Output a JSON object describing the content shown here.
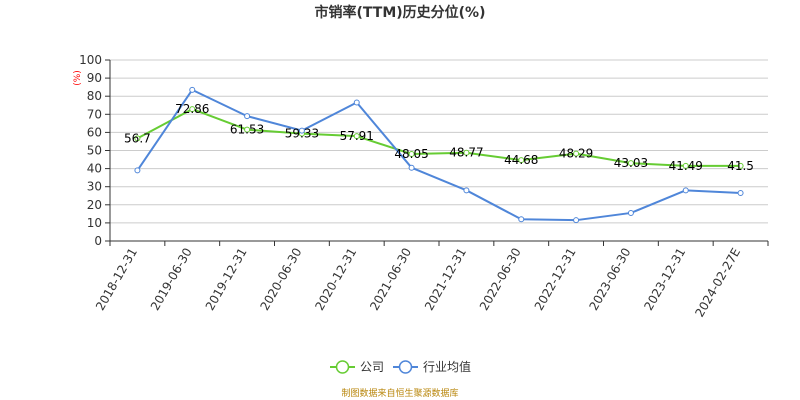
{
  "chart_data": {
    "type": "line",
    "title": "市销率(TTM)历史分位(%)",
    "unit_label": "(%)",
    "categories": [
      "2018-12-31",
      "2019-06-30",
      "2019-12-31",
      "2020-06-30",
      "2020-12-31",
      "2021-06-30",
      "2021-12-31",
      "2022-06-30",
      "2022-12-31",
      "2023-06-30",
      "2023-12-31",
      "2024-02-27E"
    ],
    "ylim": [
      0,
      100
    ],
    "yticks": [
      0,
      10,
      20,
      30,
      40,
      50,
      60,
      70,
      80,
      90,
      100
    ],
    "grid": true,
    "legend_position": "bottom",
    "series": [
      {
        "name": "公司",
        "color": "#66cc33",
        "values": [
          56.7,
          72.86,
          61.53,
          59.33,
          57.91,
          48.05,
          48.77,
          44.68,
          48.29,
          43.03,
          41.49,
          41.5
        ],
        "labels": [
          "56.7",
          "72.86",
          "61.53",
          "59.33",
          "57.91",
          "48.05",
          "48.77",
          "44.68",
          "48.29",
          "43.03",
          "41.49",
          "41.5"
        ]
      },
      {
        "name": "行业均值",
        "color": "#4f86d9",
        "values": [
          39,
          83.5,
          69,
          61,
          76.5,
          40.5,
          28,
          12,
          11.5,
          15.5,
          28,
          26.5
        ]
      }
    ],
    "source": "制图数据来自恒生聚源数据库"
  }
}
